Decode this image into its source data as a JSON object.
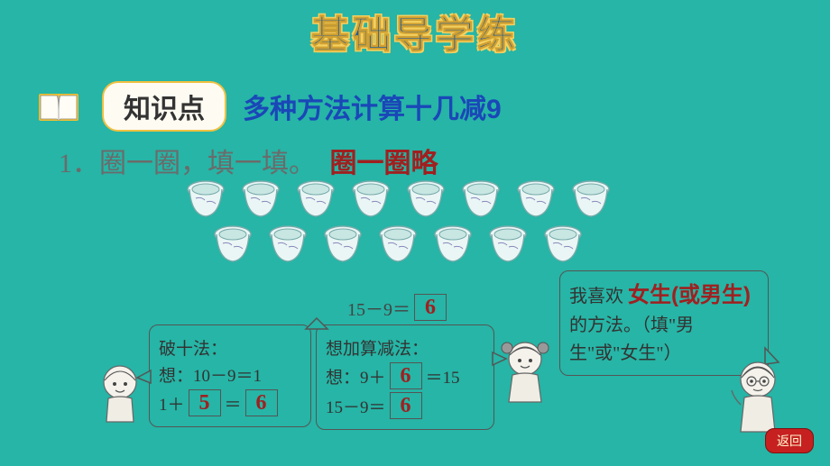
{
  "background_color": "#26b5a6",
  "title": "基础导学练",
  "knowledge": {
    "label": "知识点",
    "topic": "多种方法计算十几减9"
  },
  "question": {
    "number": "1．",
    "text": "圈一圈，填一填。",
    "hint": "圈一圈略"
  },
  "cups": {
    "row1_count": 8,
    "row2_count": 7
  },
  "top_equation": {
    "expr": "15－9＝",
    "answer": "6"
  },
  "boy_method": {
    "title": "破十法：",
    "line1_pre": "想：",
    "line1_expr": "10－9＝1",
    "line2_pre": "1＋",
    "blank1": "5",
    "mid": "＝",
    "blank2": "6"
  },
  "girl_method": {
    "title": "想加算减法：",
    "line1_pre": "想：9＋",
    "blank1": "6",
    "line1_post": "＝15",
    "line2_expr": "15－9＝",
    "blank2": "6"
  },
  "preference": {
    "pre": "我喜欢",
    "answer": "女生(或男生)",
    "post1": "的方法。（填\"男",
    "post2": "生\"或\"女生\"）"
  },
  "return_label": "返回",
  "colors": {
    "title_fill": "#1a5a9e",
    "title_outline": "#f5d060",
    "topic": "#1a47b8",
    "question_text": "#6b6b6b",
    "answer": "#a02020",
    "box_border": "#555555",
    "label_bg": "#fefbf2",
    "label_border": "#f0c040"
  }
}
